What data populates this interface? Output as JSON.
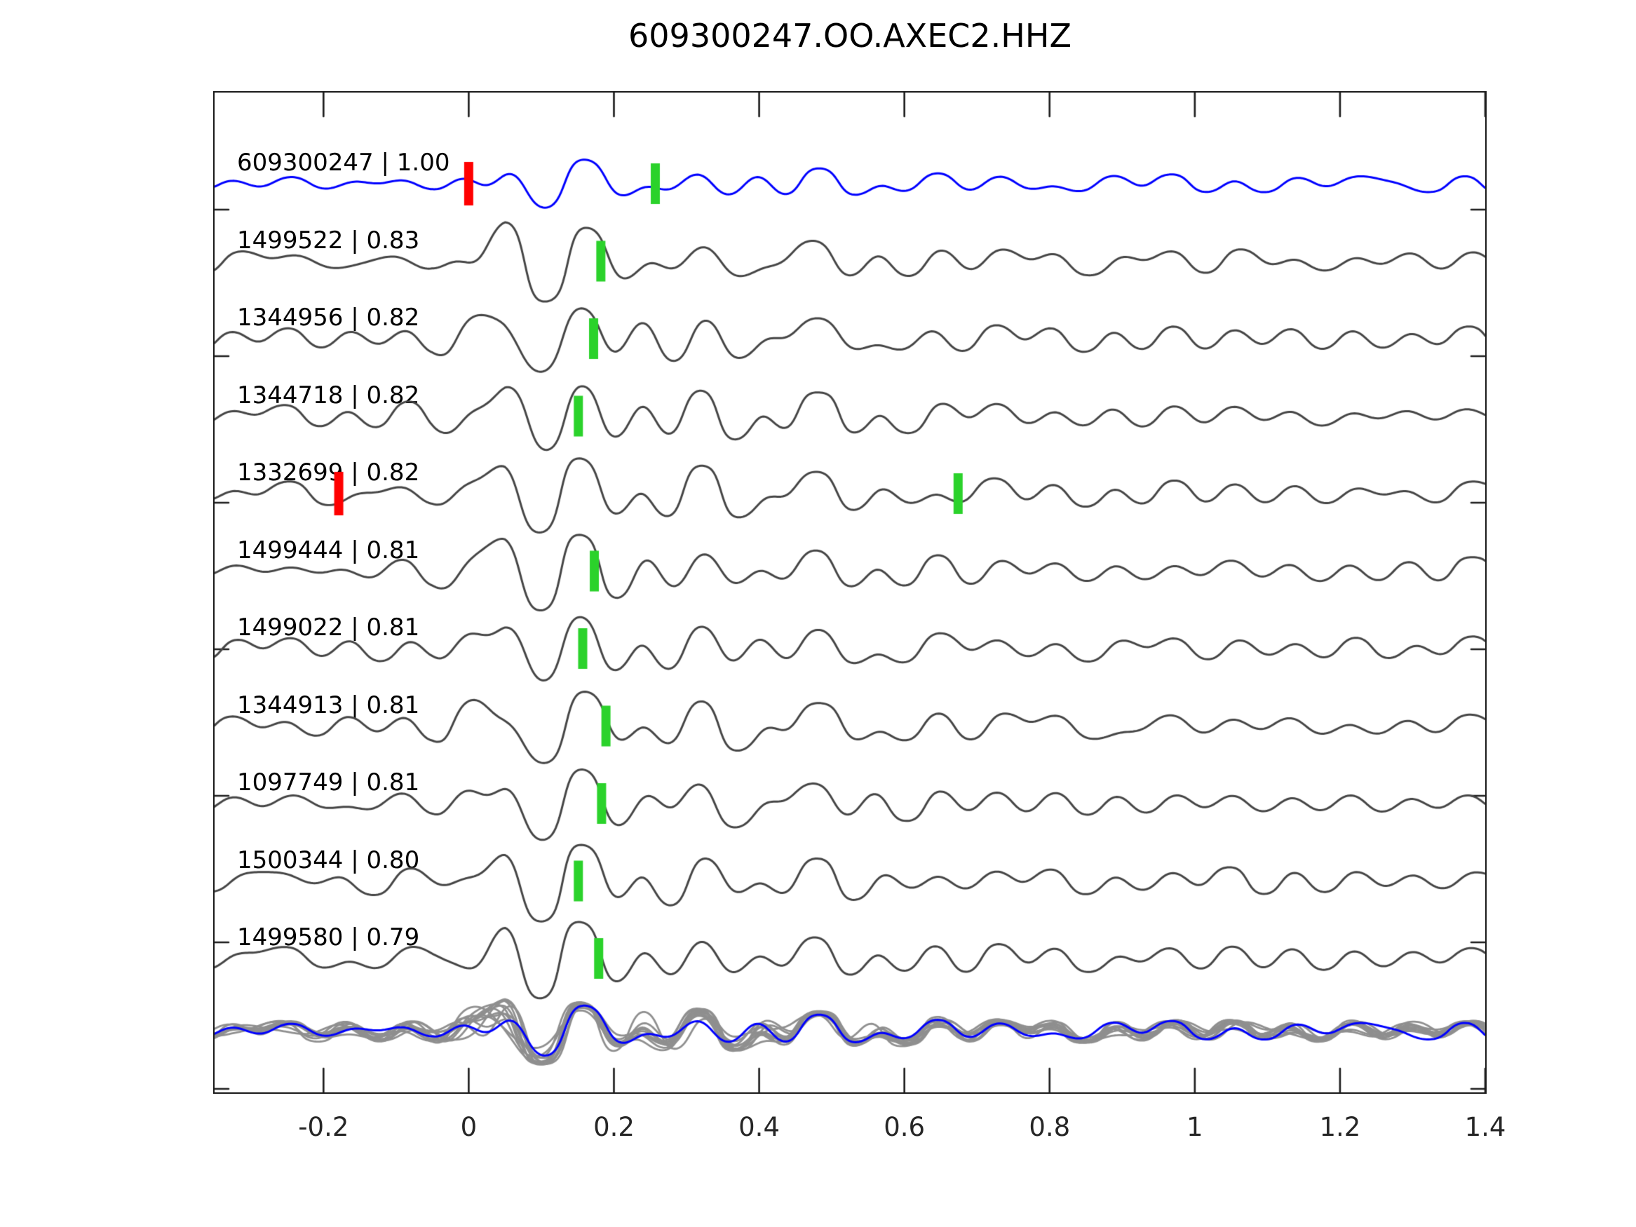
{
  "window": {
    "background": "#ffffff"
  },
  "chart_data": {
    "type": "line",
    "chart_kind": "seismogram-waveform-correlation-stack",
    "title": "609300247.OO.AXEC2.HHZ",
    "xlabel": "",
    "ylabel": "",
    "grid": false,
    "legend": "none",
    "x_axis": {
      "lim": [
        -0.35,
        1.4
      ],
      "ticks": [
        -0.2,
        0,
        0.2,
        0.4,
        0.6,
        0.8,
        1,
        1.2,
        1.4
      ],
      "tick_labels": [
        "-0.2",
        "0",
        "0.2",
        "0.4",
        "0.6",
        "0.8",
        "1",
        "1.2",
        "1.4"
      ],
      "tick_direction": "in",
      "ticks_on_top_spine": true
    },
    "y_axis": {
      "tick_labels": [],
      "tick_direction": "in",
      "ticks_on_right_spine": true
    },
    "colors": {
      "template_trace": "#0000ff",
      "detection_trace": "#454545",
      "stack_traces": "#8f8f8f",
      "stack_overlay": "#0000ff",
      "pick_green": "#2bd22b",
      "pick_red": "#ff0000",
      "axis": "#1a1a1a",
      "text": "#000000",
      "background": "#ffffff"
    },
    "traces": [
      {
        "id": "609300247",
        "correlation": "1.00",
        "label": "609300247 | 1.00",
        "is_template": true,
        "picks": [
          {
            "color": "red",
            "x": 0.0
          },
          {
            "color": "green",
            "x": 0.257
          }
        ]
      },
      {
        "id": "1499522",
        "correlation": "0.83",
        "label": "1499522 | 0.83",
        "is_template": false,
        "picks": [
          {
            "color": "green",
            "x": 0.182
          }
        ]
      },
      {
        "id": "1344956",
        "correlation": "0.82",
        "label": "1344956 | 0.82",
        "is_template": false,
        "picks": [
          {
            "color": "green",
            "x": 0.172
          }
        ]
      },
      {
        "id": "1344718",
        "correlation": "0.82",
        "label": "1344718 | 0.82",
        "is_template": false,
        "picks": [
          {
            "color": "green",
            "x": 0.151
          }
        ]
      },
      {
        "id": "1332699",
        "correlation": "0.82",
        "label": "1332699 | 0.82",
        "is_template": false,
        "picks": [
          {
            "color": "red",
            "x": -0.179
          },
          {
            "color": "green",
            "x": 0.674
          }
        ]
      },
      {
        "id": "1499444",
        "correlation": "0.81",
        "label": "1499444 | 0.81",
        "is_template": false,
        "picks": [
          {
            "color": "green",
            "x": 0.173
          }
        ]
      },
      {
        "id": "1499022",
        "correlation": "0.81",
        "label": "1499022 | 0.81",
        "is_template": false,
        "picks": [
          {
            "color": "green",
            "x": 0.157
          }
        ]
      },
      {
        "id": "1344913",
        "correlation": "0.81",
        "label": "1344913 | 0.81",
        "is_template": false,
        "picks": [
          {
            "color": "green",
            "x": 0.189
          }
        ]
      },
      {
        "id": "1097749",
        "correlation": "0.81",
        "label": "1097749 | 0.81",
        "is_template": false,
        "picks": [
          {
            "color": "green",
            "x": 0.183
          }
        ]
      },
      {
        "id": "1500344",
        "correlation": "0.80",
        "label": "1500344 | 0.80",
        "is_template": false,
        "picks": [
          {
            "color": "green",
            "x": 0.151
          }
        ]
      },
      {
        "id": "1499580",
        "correlation": "0.79",
        "label": "1499580 | 0.79",
        "is_template": false,
        "picks": [
          {
            "color": "green",
            "x": 0.179
          }
        ]
      }
    ],
    "bottom_overlay": {
      "description": "all detection waveforms overlaid in gray with blue template on top",
      "gray_trace_count": 12,
      "blue_overlay": true
    }
  }
}
